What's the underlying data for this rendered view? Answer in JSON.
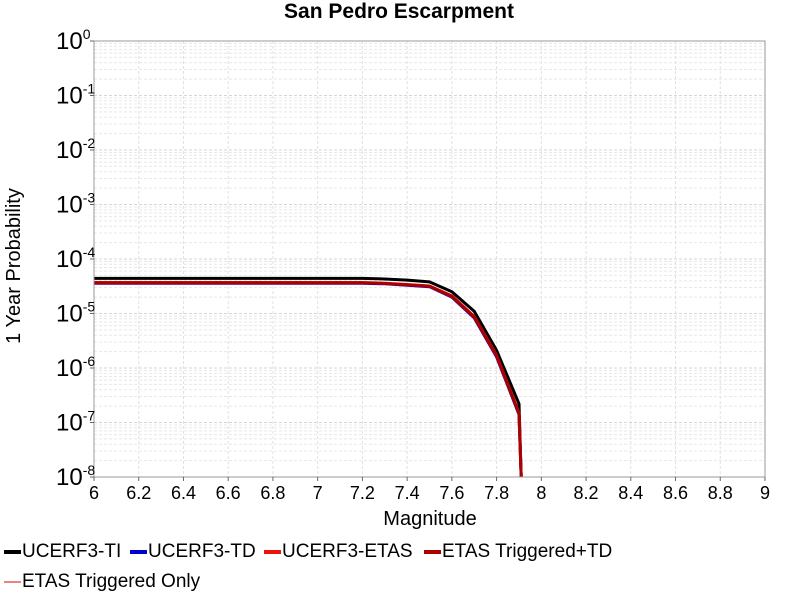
{
  "chart_data": {
    "type": "line",
    "title": "San Pedro Escarpment",
    "xlabel": "Magnitude",
    "ylabel": "1 Year Probability",
    "xlim": [
      6,
      9
    ],
    "ylim": [
      1e-08,
      1
    ],
    "yscale": "log",
    "grid": true,
    "legend_position": "bottom",
    "x_ticks": [
      "6",
      "6.2",
      "6.4",
      "6.6",
      "6.8",
      "7",
      "7.2",
      "7.4",
      "7.6",
      "7.8",
      "8",
      "8.2",
      "8.4",
      "8.6",
      "8.8",
      "9"
    ],
    "y_ticks": [
      {
        "base": "10",
        "exp": "0"
      },
      {
        "base": "10",
        "exp": "-1"
      },
      {
        "base": "10",
        "exp": "-2"
      },
      {
        "base": "10",
        "exp": "-3"
      },
      {
        "base": "10",
        "exp": "-4"
      },
      {
        "base": "10",
        "exp": "-5"
      },
      {
        "base": "10",
        "exp": "-6"
      },
      {
        "base": "10",
        "exp": "-7"
      },
      {
        "base": "10",
        "exp": "-8"
      }
    ],
    "series": [
      {
        "name": "UCERF3-TI",
        "color": "#000000",
        "x": [
          6.0,
          6.1,
          6.2,
          6.3,
          6.4,
          6.5,
          6.6,
          6.7,
          6.8,
          6.9,
          7.0,
          7.1,
          7.2,
          7.3,
          7.4,
          7.5,
          7.6,
          7.7,
          7.8,
          7.9,
          7.91
        ],
        "y": [
          4.4e-05,
          4.4e-05,
          4.4e-05,
          4.4e-05,
          4.4e-05,
          4.4e-05,
          4.4e-05,
          4.4e-05,
          4.4e-05,
          4.4e-05,
          4.4e-05,
          4.4e-05,
          4.4e-05,
          4.3e-05,
          4.1e-05,
          3.8e-05,
          2.5e-05,
          1.1e-05,
          2.1e-06,
          2.2e-07,
          1e-08
        ]
      },
      {
        "name": "UCERF3-TD",
        "color": "#0000cc",
        "x": [
          6.0,
          6.1,
          6.2,
          6.3,
          6.4,
          6.5,
          6.6,
          6.7,
          6.8,
          6.9,
          7.0,
          7.1,
          7.2,
          7.3,
          7.4,
          7.5,
          7.6,
          7.7,
          7.8,
          7.9,
          7.91
        ],
        "y": [
          3.6e-05,
          3.6e-05,
          3.6e-05,
          3.6e-05,
          3.6e-05,
          3.6e-05,
          3.6e-05,
          3.6e-05,
          3.6e-05,
          3.6e-05,
          3.6e-05,
          3.6e-05,
          3.6e-05,
          3.5e-05,
          3.3e-05,
          3.1e-05,
          2e-05,
          8.3e-06,
          1.6e-06,
          1.4e-07,
          1e-08
        ]
      },
      {
        "name": "UCERF3-ETAS",
        "color": "#ee1111",
        "x": [
          6.0,
          6.1,
          6.2,
          6.3,
          6.4,
          6.5,
          6.6,
          6.7,
          6.8,
          6.9,
          7.0,
          7.1,
          7.2,
          7.3,
          7.4,
          7.5,
          7.6,
          7.7,
          7.8,
          7.9,
          7.91
        ],
        "y": [
          3.7e-05,
          3.7e-05,
          3.7e-05,
          3.7e-05,
          3.7e-05,
          3.7e-05,
          3.7e-05,
          3.7e-05,
          3.7e-05,
          3.7e-05,
          3.7e-05,
          3.7e-05,
          3.7e-05,
          3.6e-05,
          3.4e-05,
          3.2e-05,
          2.1e-05,
          8.8e-06,
          1.7e-06,
          1.5e-07,
          1e-08
        ]
      },
      {
        "name": "ETAS Triggered+TD",
        "color": "#aa0000",
        "x": [
          6.0,
          6.1,
          6.2,
          6.3,
          6.4,
          6.5,
          6.6,
          6.7,
          6.8,
          6.9,
          7.0,
          7.1,
          7.2,
          7.3,
          7.4,
          7.5,
          7.6,
          7.7,
          7.8,
          7.9,
          7.91
        ],
        "y": [
          3.65e-05,
          3.65e-05,
          3.65e-05,
          3.65e-05,
          3.65e-05,
          3.65e-05,
          3.65e-05,
          3.65e-05,
          3.65e-05,
          3.65e-05,
          3.65e-05,
          3.65e-05,
          3.65e-05,
          3.55e-05,
          3.35e-05,
          3.15e-05,
          2.05e-05,
          8.6e-06,
          1.65e-06,
          1.45e-07,
          1e-08
        ]
      },
      {
        "name": "ETAS Triggered Only",
        "color": "#f08080",
        "x": [],
        "y": []
      }
    ]
  }
}
